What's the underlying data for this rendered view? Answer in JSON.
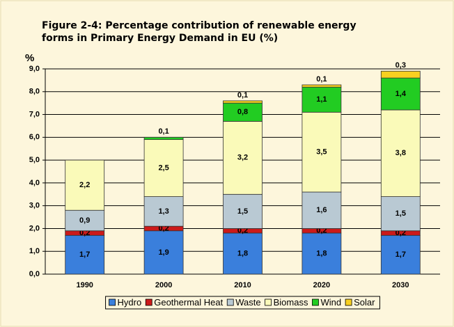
{
  "chart_data": {
    "type": "stacked_bar",
    "title": "Figure 2-4: Percentage contribution of renewable energy forms in Primary Energy Demand in EU (%)",
    "y_label": "%",
    "categories": [
      "1990",
      "2000",
      "2010",
      "2020",
      "2030"
    ],
    "series": [
      {
        "name": "Hydro",
        "color": "#3a7fdc",
        "values": [
          1.7,
          1.9,
          1.8,
          1.8,
          1.7
        ],
        "value_labels": [
          "1,7",
          "1,9",
          "1,8",
          "1,8",
          "1,7"
        ]
      },
      {
        "name": "Geothermal Heat",
        "color": "#cc1a1a",
        "values": [
          0.2,
          0.2,
          0.2,
          0.2,
          0.2
        ],
        "value_labels": [
          "0,2",
          "0,2",
          "0,2",
          "0,2",
          "0,2"
        ]
      },
      {
        "name": "Waste",
        "color": "#b9c9d3",
        "values": [
          0.9,
          1.3,
          1.5,
          1.6,
          1.5
        ],
        "value_labels": [
          "0,9",
          "1,3",
          "1,5",
          "1,6",
          "1,5"
        ]
      },
      {
        "name": "Biomass",
        "color": "#fafab9",
        "values": [
          2.2,
          2.5,
          3.2,
          3.5,
          3.8
        ],
        "value_labels": [
          "2,2",
          "2,5",
          "3,2",
          "3,5",
          "3,8"
        ]
      },
      {
        "name": "Wind",
        "color": "#22cc22",
        "values": [
          null,
          0.1,
          0.8,
          1.1,
          1.4
        ],
        "value_labels": [
          null,
          "0,1",
          "0,8",
          "1,1",
          "1,4"
        ]
      },
      {
        "name": "Solar",
        "color": "#f8d020",
        "values": [
          null,
          null,
          0.1,
          0.1,
          0.3
        ],
        "value_labels": [
          null,
          null,
          "0,1",
          "0,1",
          "0,3"
        ]
      }
    ],
    "ylim": [
      0,
      9
    ],
    "yticks": [
      {
        "value": 0,
        "label": "0,0"
      },
      {
        "value": 1,
        "label": "1,0"
      },
      {
        "value": 2,
        "label": "2,0"
      },
      {
        "value": 3,
        "label": "3,0"
      },
      {
        "value": 4,
        "label": "4,0"
      },
      {
        "value": 5,
        "label": "5,0"
      },
      {
        "value": 6,
        "label": "6,0"
      },
      {
        "value": 7,
        "label": "7,0"
      },
      {
        "value": 8,
        "label": "8,0"
      },
      {
        "value": 9,
        "label": "9,0"
      }
    ],
    "grid": true,
    "legend": "bottom"
  }
}
